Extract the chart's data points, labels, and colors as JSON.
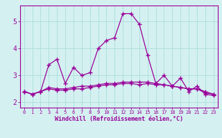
{
  "xlabel": "Windchill (Refroidissement éolien,°C)",
  "x": [
    0,
    1,
    2,
    3,
    4,
    5,
    6,
    7,
    8,
    9,
    10,
    11,
    12,
    13,
    14,
    15,
    16,
    17,
    18,
    19,
    20,
    21,
    22,
    23
  ],
  "line1": [
    2.4,
    2.3,
    2.4,
    3.4,
    3.6,
    2.7,
    3.3,
    3.0,
    3.1,
    4.0,
    4.3,
    4.4,
    5.3,
    5.3,
    4.9,
    3.75,
    2.7,
    3.0,
    2.6,
    2.9,
    2.4,
    2.6,
    2.3,
    2.25
  ],
  "line2": [
    2.4,
    2.3,
    2.4,
    2.5,
    2.45,
    2.45,
    2.5,
    2.5,
    2.55,
    2.6,
    2.65,
    2.65,
    2.7,
    2.7,
    2.65,
    2.7,
    2.65,
    2.65,
    2.6,
    2.55,
    2.5,
    2.5,
    2.35,
    2.3
  ],
  "line3": [
    2.4,
    2.3,
    2.4,
    2.55,
    2.5,
    2.5,
    2.55,
    2.6,
    2.6,
    2.65,
    2.7,
    2.7,
    2.75,
    2.75,
    2.75,
    2.75,
    2.7,
    2.65,
    2.6,
    2.55,
    2.5,
    2.5,
    2.4,
    2.3
  ],
  "color": "#990099",
  "bg_color": "#d4f0f0",
  "grid_color": "#aadddd",
  "ylim": [
    1.8,
    5.6
  ],
  "yticks": [
    2,
    3,
    4,
    5
  ],
  "xlim": [
    -0.5,
    23.5
  ],
  "marker": "+",
  "markersize": 4,
  "linewidth": 0.9
}
